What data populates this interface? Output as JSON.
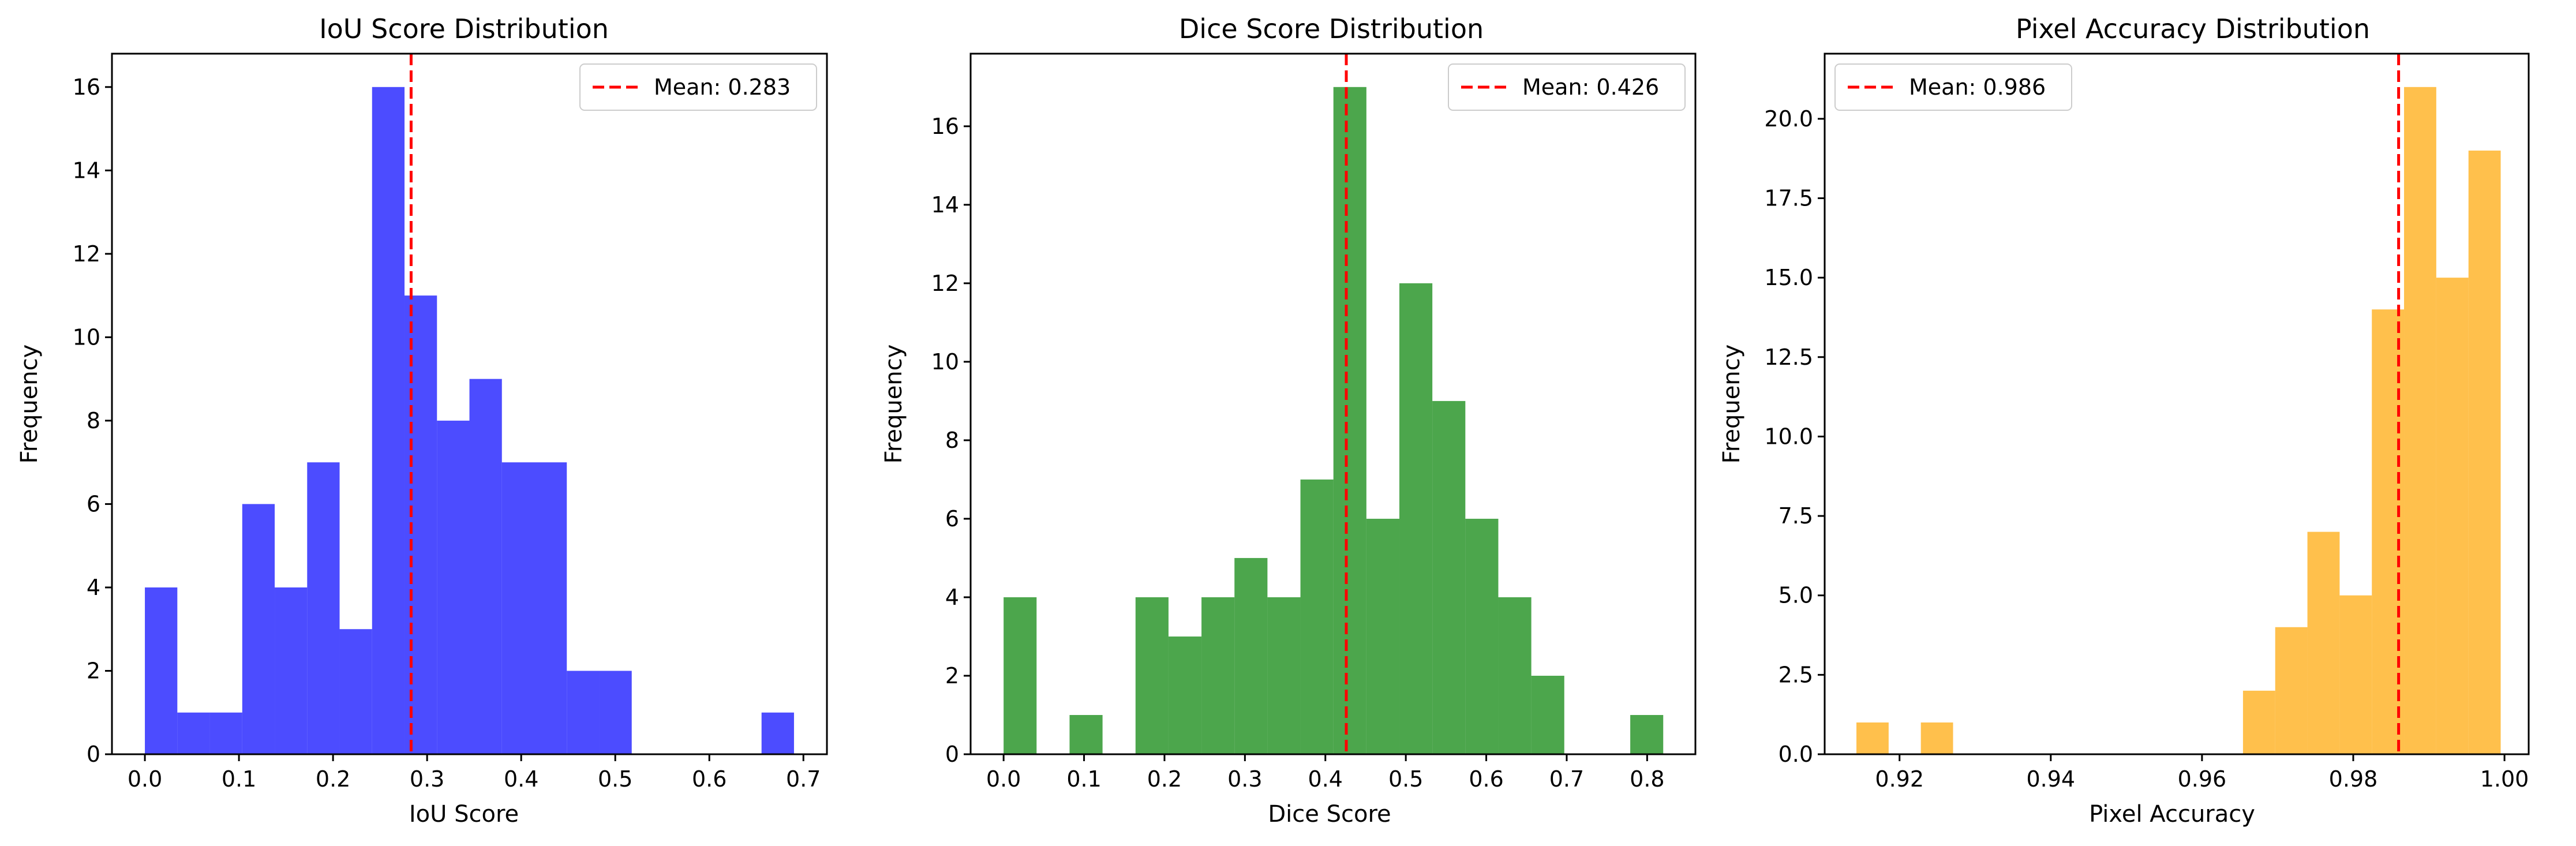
{
  "chart_data": [
    {
      "type": "histogram",
      "title": "IoU Score Distribution",
      "xlabel": "IoU Score",
      "ylabel": "Frequency",
      "xlim": [
        -0.035,
        0.725
      ],
      "ylim": [
        0,
        16.8
      ],
      "xticks": [
        0.0,
        0.1,
        0.2,
        0.3,
        0.4,
        0.5,
        0.6,
        0.7
      ],
      "xtick_labels": [
        "0.0",
        "0.1",
        "0.2",
        "0.3",
        "0.4",
        "0.5",
        "0.6",
        "0.7"
      ],
      "yticks": [
        0,
        2,
        4,
        6,
        8,
        10,
        12,
        14,
        16
      ],
      "ytick_labels": [
        "0",
        "2",
        "4",
        "6",
        "8",
        "10",
        "12",
        "14",
        "16"
      ],
      "bin_start": 0.0,
      "bin_width": 0.0345,
      "counts": [
        4,
        1,
        1,
        6,
        4,
        7,
        3,
        16,
        11,
        8,
        9,
        7,
        7,
        2,
        2,
        0,
        0,
        0,
        0,
        1
      ],
      "color": "#0000ff",
      "opacity": 0.7,
      "mean": 0.283,
      "mean_color": "#ff0000",
      "legend": {
        "label": "Mean: 0.283",
        "position": "upper right"
      }
    },
    {
      "type": "histogram",
      "title": "Dice Score Distribution",
      "xlabel": "Dice Score",
      "ylabel": "Frequency",
      "xlim": [
        -0.041,
        0.86
      ],
      "ylim": [
        0,
        17.85
      ],
      "xticks": [
        0.0,
        0.1,
        0.2,
        0.3,
        0.4,
        0.5,
        0.6,
        0.7,
        0.8
      ],
      "xtick_labels": [
        "0.0",
        "0.1",
        "0.2",
        "0.3",
        "0.4",
        "0.5",
        "0.6",
        "0.7",
        "0.8"
      ],
      "yticks": [
        0,
        2,
        4,
        6,
        8,
        10,
        12,
        14,
        16
      ],
      "ytick_labels": [
        "0",
        "2",
        "4",
        "6",
        "8",
        "10",
        "12",
        "14",
        "16"
      ],
      "bin_start": 0.0,
      "bin_width": 0.041,
      "counts": [
        4,
        0,
        1,
        0,
        4,
        3,
        4,
        5,
        4,
        7,
        17,
        6,
        12,
        9,
        6,
        4,
        2,
        0,
        0,
        1
      ],
      "color": "#008000",
      "opacity": 0.7,
      "mean": 0.426,
      "mean_color": "#ff0000",
      "legend": {
        "label": "Mean: 0.426",
        "position": "upper right"
      }
    },
    {
      "type": "histogram",
      "title": "Pixel Accuracy Distribution",
      "xlabel": "Pixel Accuracy",
      "ylabel": "Frequency",
      "xlim": [
        0.9101,
        1.0032
      ],
      "ylim": [
        0,
        22.05
      ],
      "xticks": [
        0.92,
        0.94,
        0.96,
        0.98,
        1.0
      ],
      "xtick_labels": [
        "0.92",
        "0.94",
        "0.96",
        "0.98",
        "1.00"
      ],
      "yticks": [
        0.0,
        2.5,
        5.0,
        7.5,
        10.0,
        12.5,
        15.0,
        17.5,
        20.0
      ],
      "ytick_labels": [
        "0.0",
        "2.5",
        "5.0",
        "7.5",
        "10.0",
        "12.5",
        "15.0",
        "17.5",
        "20.0"
      ],
      "bin_start": 0.9143,
      "bin_width": 0.00426,
      "counts": [
        1,
        0,
        1,
        0,
        0,
        0,
        0,
        0,
        0,
        0,
        0,
        0,
        2,
        4,
        7,
        5,
        14,
        21,
        15,
        19
      ],
      "color": "#ffa500",
      "opacity": 0.7,
      "mean": 0.986,
      "mean_color": "#ff0000",
      "legend": {
        "label": "Mean: 0.986",
        "position": "upper left"
      }
    }
  ]
}
